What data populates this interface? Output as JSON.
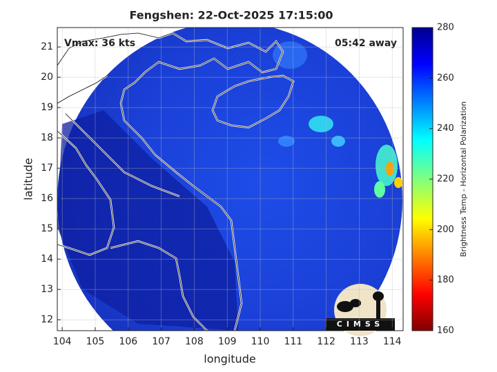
{
  "map": {
    "title": "Fengshen: 22-Oct-2025 17:15:00",
    "vmax_label": "Vmax: 36 kts",
    "time_label": "05:42 away",
    "xlabel": "longitude",
    "ylabel": "latitude",
    "xlim": [
      103.85,
      114.33
    ],
    "ylim": [
      11.64,
      21.64
    ],
    "xticks": [
      104,
      105,
      106,
      107,
      108,
      109,
      110,
      111,
      112,
      113,
      114
    ],
    "yticks": [
      12,
      13,
      14,
      15,
      16,
      17,
      18,
      19,
      20,
      21
    ],
    "grid": true,
    "colorbar": {
      "label": "Brightness Temp - Horizontal Polarization",
      "lim": [
        160,
        280
      ],
      "ticks": [
        160,
        180,
        200,
        220,
        240,
        260,
        280
      ]
    },
    "logo_text": "CIMSS"
  }
}
